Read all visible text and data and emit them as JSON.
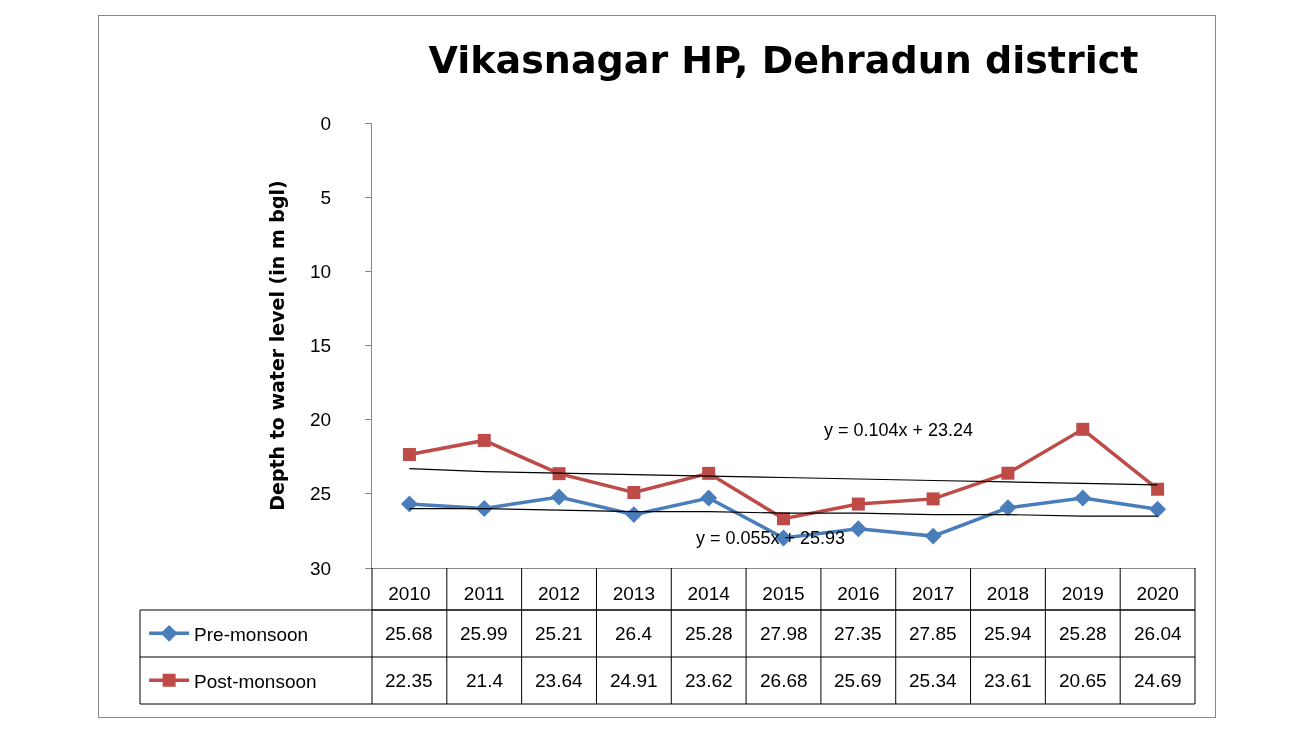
{
  "chart_data": {
    "type": "line",
    "title": "Vikasnagar HP, Dehradun district",
    "ylabel": "Depth to water level (in m bgl)",
    "categories": [
      "2010",
      "2011",
      "2012",
      "2013",
      "2014",
      "2015",
      "2016",
      "2017",
      "2018",
      "2019",
      "2020"
    ],
    "series": [
      {
        "name": "Pre-monsoon",
        "color": "#4a7ebb",
        "marker": "diamond",
        "values": [
          25.68,
          25.99,
          25.21,
          26.4,
          25.28,
          27.98,
          27.35,
          27.85,
          25.94,
          25.28,
          26.04
        ],
        "value_labels": [
          "25.68",
          "25.99",
          "25.21",
          "26.4",
          "25.28",
          "27.98",
          "27.35",
          "27.85",
          "25.94",
          "25.28",
          "26.04"
        ]
      },
      {
        "name": "Post-monsoon",
        "color": "#be4b48",
        "marker": "square",
        "values": [
          22.35,
          21.4,
          23.64,
          24.91,
          23.62,
          26.68,
          25.69,
          25.34,
          23.61,
          20.65,
          24.69
        ],
        "value_labels": [
          "22.35",
          "21.4",
          "23.64",
          "24.91",
          "23.62",
          "26.68",
          "25.69",
          "25.34",
          "23.61",
          "20.65",
          "24.69"
        ]
      },
      {
        "type": "line",
        "color": "#000000",
        "marker": "none",
        "values": [
          26.0,
          26.0,
          26.1,
          26.2,
          26.2,
          26.3,
          26.3,
          26.4,
          26.4,
          26.5,
          26.5
        ]
      },
      {
        "type": "line",
        "color": "#000000",
        "marker": "none",
        "values": [
          23.3,
          23.5,
          23.6,
          23.7,
          23.8,
          23.9,
          24.0,
          24.1,
          24.2,
          24.3,
          24.4
        ]
      }
    ],
    "annotations": [
      "y = 0.104x + 23.24",
      "y = 0.055x + 25.93"
    ],
    "ylim": [
      30,
      0
    ],
    "yticks": [
      0,
      5,
      10,
      15,
      20,
      25,
      30
    ],
    "grid": false,
    "legend": "bottom left",
    "line_style": "solid"
  }
}
